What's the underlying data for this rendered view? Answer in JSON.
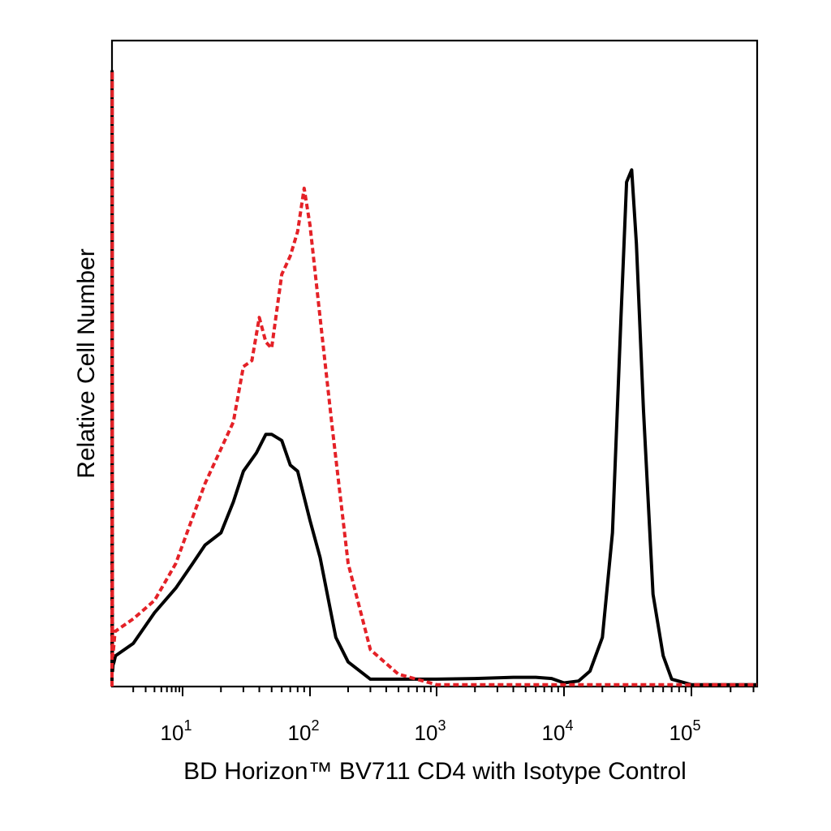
{
  "chart_data": {
    "type": "line",
    "title": "",
    "xlabel": "BD Horizon™ BV711 CD4 with Isotype Control",
    "ylabel": "Relative Cell Number",
    "x_scale": "biexponential-log",
    "xlim": [
      0.19,
      320000
    ],
    "ylim": [
      0,
      100
    ],
    "y_tick_labels_shown": false,
    "grid": false,
    "legend": "none",
    "x_tick_labels": [
      {
        "value": 10,
        "base": "10",
        "exp": "1"
      },
      {
        "value": 100,
        "base": "10",
        "exp": "2"
      },
      {
        "value": 1000,
        "base": "10",
        "exp": "3"
      },
      {
        "value": 10000,
        "base": "10",
        "exp": "4"
      },
      {
        "value": 100000,
        "base": "10",
        "exp": "5"
      }
    ],
    "x_minor_ticks": [
      2,
      3,
      4,
      5,
      6,
      7,
      8,
      9,
      20,
      30,
      40,
      50,
      60,
      70,
      80,
      90,
      200,
      300,
      400,
      500,
      600,
      700,
      800,
      900,
      2000,
      3000,
      4000,
      5000,
      6000,
      7000,
      8000,
      9000,
      20000,
      30000,
      40000,
      50000,
      60000,
      70000,
      80000,
      90000,
      200000,
      300000
    ],
    "series": [
      {
        "style": "solid",
        "color": "#000000",
        "points": [
          [
            0.19,
            0
          ],
          [
            0.2,
            100
          ],
          [
            0.21,
            80
          ],
          [
            0.22,
            20
          ],
          [
            0.23,
            4
          ],
          [
            0.25,
            2.5
          ],
          [
            0.3,
            3.5
          ],
          [
            0.5,
            4
          ],
          [
            1,
            5
          ],
          [
            2,
            7
          ],
          [
            4,
            12
          ],
          [
            8,
            16
          ],
          [
            12,
            20
          ],
          [
            15,
            23
          ],
          [
            20,
            25
          ],
          [
            25,
            30
          ],
          [
            30,
            35
          ],
          [
            38,
            38
          ],
          [
            45,
            41
          ],
          [
            50,
            41
          ],
          [
            60,
            40
          ],
          [
            70,
            36
          ],
          [
            80,
            35
          ],
          [
            100,
            27
          ],
          [
            120,
            21
          ],
          [
            160,
            8
          ],
          [
            200,
            4
          ],
          [
            300,
            1.2
          ],
          [
            600,
            1.2
          ],
          [
            1000,
            1.2
          ],
          [
            2000,
            1.3
          ],
          [
            4000,
            1.5
          ],
          [
            6000,
            1.5
          ],
          [
            8000,
            1.3
          ],
          [
            10000,
            0.6
          ],
          [
            13000,
            0.9
          ],
          [
            16000,
            2.5
          ],
          [
            20000,
            8
          ],
          [
            24000,
            25
          ],
          [
            28000,
            60
          ],
          [
            31000,
            82
          ],
          [
            34000,
            84
          ],
          [
            37000,
            72
          ],
          [
            42000,
            45
          ],
          [
            50000,
            15
          ],
          [
            60000,
            5
          ],
          [
            70000,
            1.2
          ],
          [
            100000,
            0.3
          ],
          [
            320000,
            0.3
          ]
        ]
      },
      {
        "style": "dashed",
        "color": "#e42127",
        "points": [
          [
            0.19,
            0
          ],
          [
            0.21,
            100
          ],
          [
            0.22,
            70
          ],
          [
            0.23,
            20
          ],
          [
            0.24,
            5
          ],
          [
            0.28,
            5
          ],
          [
            0.5,
            7
          ],
          [
            0.8,
            9
          ],
          [
            1,
            9
          ],
          [
            2,
            11
          ],
          [
            4,
            14
          ],
          [
            8,
            20
          ],
          [
            15,
            33
          ],
          [
            25,
            43
          ],
          [
            30,
            52
          ],
          [
            35,
            53
          ],
          [
            40,
            60
          ],
          [
            45,
            56
          ],
          [
            50,
            55
          ],
          [
            60,
            67
          ],
          [
            70,
            70
          ],
          [
            80,
            74
          ],
          [
            90,
            81
          ],
          [
            100,
            75
          ],
          [
            120,
            60
          ],
          [
            150,
            42
          ],
          [
            200,
            20
          ],
          [
            300,
            6
          ],
          [
            500,
            2
          ],
          [
            1000,
            0.3
          ],
          [
            320000,
            0.3
          ]
        ]
      }
    ]
  }
}
